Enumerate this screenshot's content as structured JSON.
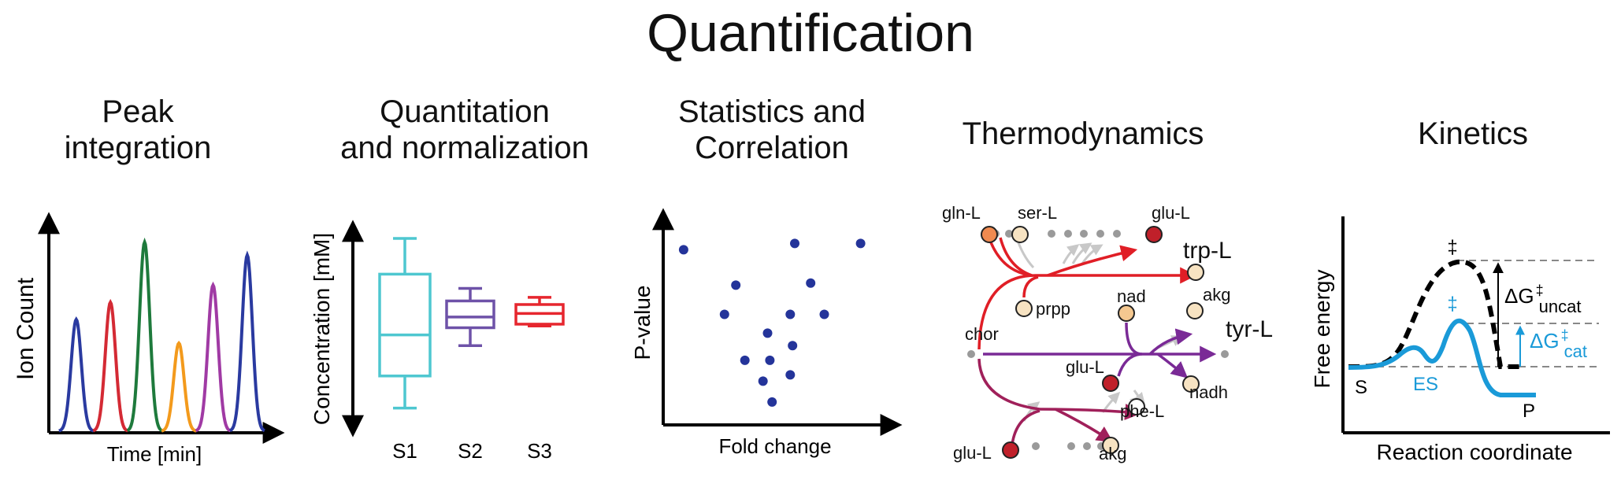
{
  "title": "Quantification",
  "panels": {
    "peak": {
      "title_line1": "Peak",
      "title_line2": "integration",
      "xlabel": "Time [min]",
      "ylabel": "Ion Count"
    },
    "quant": {
      "title_line1": "Quantitation",
      "title_line2": "and normalization",
      "ylabel": "Concentration [mM]",
      "samples": [
        "S1",
        "S2",
        "S3"
      ]
    },
    "stats": {
      "title_line1": "Statistics and",
      "title_line2": "Correlation",
      "xlabel": "Fold change",
      "ylabel": "P-value"
    },
    "thermo": {
      "title": "Thermodynamics",
      "labels": {
        "gln_l": "gln-L",
        "ser_l": "ser-L",
        "glu_l_top": "glu-L",
        "trp_l": "trp-L",
        "prpp": "prpp",
        "akg_top": "akg",
        "nad": "nad",
        "tyr_l": "tyr-L",
        "chor": "chor",
        "glu_l_mid": "glu-L",
        "nadh": "nadh",
        "phe_l": "phe-L",
        "glu_l_bottom": "glu-L",
        "akg_bottom": "akg"
      }
    },
    "kinetics": {
      "title": "Kinetics",
      "xlabel": "Reaction coordinate",
      "ylabel": "Free energy",
      "label_s": "S",
      "label_es": "ES",
      "label_p": "P",
      "dagger_uncat": "‡",
      "dagger_cat": "‡",
      "delta_uncat_main": "ΔG",
      "delta_uncat_sup": "‡",
      "delta_uncat_sub": "uncat",
      "delta_cat_main": "ΔG",
      "delta_cat_sup": "‡",
      "delta_cat_sub": "cat"
    }
  },
  "colors": {
    "peaks": [
      "#2a3aa0",
      "#d42a34",
      "#1e7a3c",
      "#f39a1c",
      "#a03aa4",
      "#2a3aa0"
    ],
    "boxes": [
      "#4ec7d0",
      "#6e52a8",
      "#e6262e"
    ],
    "dots": "#24349a",
    "thermo_red": "#e01e26",
    "thermo_purple": "#7a2a96",
    "thermo_magenta": "#a0205a",
    "kinetic_cat": "#1a9ad8"
  },
  "chart_data": [
    {
      "type": "line",
      "title": "Peak integration",
      "xlabel": "Time [min]",
      "ylabel": "Ion Count",
      "series": [
        {
          "x": [
            1
          ],
          "values": [
            0.52
          ]
        },
        {
          "x": [
            2
          ],
          "values": [
            0.6
          ]
        },
        {
          "x": [
            3
          ],
          "values": [
            0.88
          ]
        },
        {
          "x": [
            4
          ],
          "values": [
            0.41
          ]
        },
        {
          "x": [
            5
          ],
          "values": [
            0.68
          ]
        },
        {
          "x": [
            6
          ],
          "values": [
            0.82
          ]
        }
      ]
    },
    {
      "type": "box",
      "title": "Quantitation and normalization",
      "ylabel": "Concentration [mM]",
      "categories": [
        "S1",
        "S2",
        "S3"
      ],
      "boxes": [
        {
          "min": 0.05,
          "q1": 0.23,
          "median": 0.46,
          "q3": 0.8,
          "max": 1.0
        },
        {
          "min": 0.4,
          "q1": 0.5,
          "median": 0.56,
          "q3": 0.65,
          "max": 0.72
        },
        {
          "min": 0.51,
          "q1": 0.52,
          "median": 0.58,
          "q3": 0.63,
          "max": 0.67
        }
      ]
    },
    {
      "type": "scatter",
      "title": "Statistics and Correlation",
      "xlabel": "Fold change",
      "ylabel": "P-value",
      "points": [
        {
          "x": 0.09,
          "y": 0.84
        },
        {
          "x": 0.58,
          "y": 0.87
        },
        {
          "x": 0.87,
          "y": 0.87
        },
        {
          "x": 0.32,
          "y": 0.67
        },
        {
          "x": 0.65,
          "y": 0.68
        },
        {
          "x": 0.27,
          "y": 0.53
        },
        {
          "x": 0.56,
          "y": 0.53
        },
        {
          "x": 0.71,
          "y": 0.53
        },
        {
          "x": 0.46,
          "y": 0.44
        },
        {
          "x": 0.57,
          "y": 0.38
        },
        {
          "x": 0.36,
          "y": 0.31
        },
        {
          "x": 0.47,
          "y": 0.31
        },
        {
          "x": 0.56,
          "y": 0.24
        },
        {
          "x": 0.44,
          "y": 0.21
        },
        {
          "x": 0.48,
          "y": 0.11
        }
      ]
    }
  ]
}
